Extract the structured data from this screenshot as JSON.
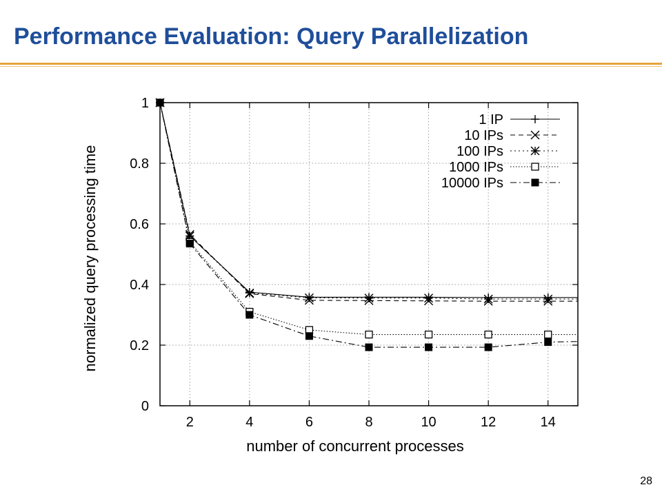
{
  "slide": {
    "title": "Performance Evaluation: Query Parallelization",
    "page_number": "28"
  },
  "colors": {
    "title": "#1f4e9a",
    "rule": "#e8a33b"
  },
  "chart_data": {
    "type": "line",
    "xlabel": "number of concurrent processes",
    "ylabel": "normalized query processing time",
    "xlim": [
      1,
      15
    ],
    "ylim": [
      0,
      1
    ],
    "x_ticks": [
      2,
      4,
      6,
      8,
      10,
      12,
      14
    ],
    "y_ticks": [
      0,
      0.2,
      0.4,
      0.6,
      0.8,
      1
    ],
    "y_tick_labels": [
      "0",
      "0.2",
      "0.4",
      "0.6",
      "0.8",
      "1"
    ],
    "grid": true,
    "legend_position": "top-right",
    "x": [
      1,
      2,
      4,
      6,
      8,
      10,
      12,
      14,
      15
    ],
    "series": [
      {
        "name": "1 IP",
        "marker": "plus",
        "dash": "solid",
        "values": [
          1.0,
          0.56,
          0.375,
          0.358,
          0.358,
          0.358,
          0.357,
          0.357,
          0.357
        ]
      },
      {
        "name": "10 IPs",
        "marker": "x",
        "dash": "dashed",
        "values": [
          1.0,
          0.565,
          0.37,
          0.348,
          0.347,
          0.346,
          0.345,
          0.345,
          0.345
        ]
      },
      {
        "name": "100 IPs",
        "marker": "star",
        "dash": "dotted",
        "values": [
          1.0,
          0.56,
          0.372,
          0.356,
          0.355,
          0.355,
          0.352,
          0.352,
          0.352
        ]
      },
      {
        "name": "1000 IPs",
        "marker": "open-square",
        "dash": "fine-dotted",
        "values": [
          1.0,
          0.54,
          0.31,
          0.25,
          0.235,
          0.235,
          0.235,
          0.235,
          0.235
        ]
      },
      {
        "name": "10000 IPs",
        "marker": "filled-square",
        "dash": "dash-dot",
        "values": [
          1.0,
          0.535,
          0.3,
          0.23,
          0.193,
          0.193,
          0.193,
          0.21,
          0.212
        ]
      }
    ]
  }
}
